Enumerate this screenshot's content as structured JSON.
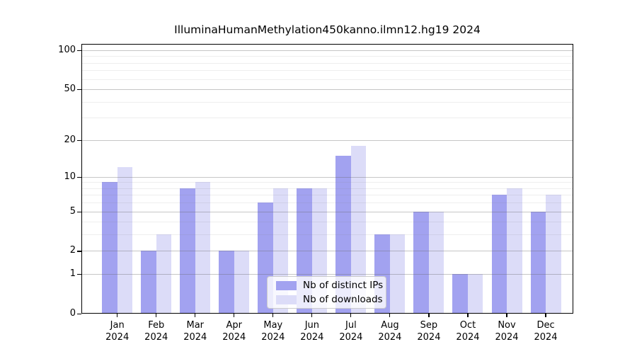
{
  "title": "IlluminaHumanMethylation450kanno.ilmn12.hg19 2024",
  "chart_data": {
    "type": "bar",
    "title": "IlluminaHumanMethylation450kanno.ilmn12.hg19 2024",
    "categories": [
      "Jan 2024",
      "Feb 2024",
      "Mar 2024",
      "Apr 2024",
      "May 2024",
      "Jun 2024",
      "Jul 2024",
      "Aug 2024",
      "Sep 2024",
      "Oct 2024",
      "Nov 2024",
      "Dec 2024"
    ],
    "series": [
      {
        "name": "Nb of distinct IPs",
        "color": "#a2a2f0",
        "values": [
          9,
          2,
          8,
          2,
          6,
          8,
          15,
          3,
          5,
          1,
          7,
          5
        ]
      },
      {
        "name": "Nb of downloads",
        "color": "#dcdcf8",
        "values": [
          12,
          3,
          9,
          2,
          8,
          8,
          18,
          3,
          5,
          1,
          8,
          7
        ]
      }
    ],
    "xlabel": "",
    "ylabel": "",
    "yscale": "log1p",
    "ylim": [
      0,
      112
    ],
    "y_major_ticks": [
      0,
      1,
      2,
      5,
      10,
      20,
      50,
      100
    ],
    "y_minor_ticks": [
      3,
      4,
      6,
      7,
      8,
      9,
      30,
      40,
      60,
      70,
      80,
      90
    ],
    "grid": "horizontal",
    "legend_position": "lower center inside"
  }
}
